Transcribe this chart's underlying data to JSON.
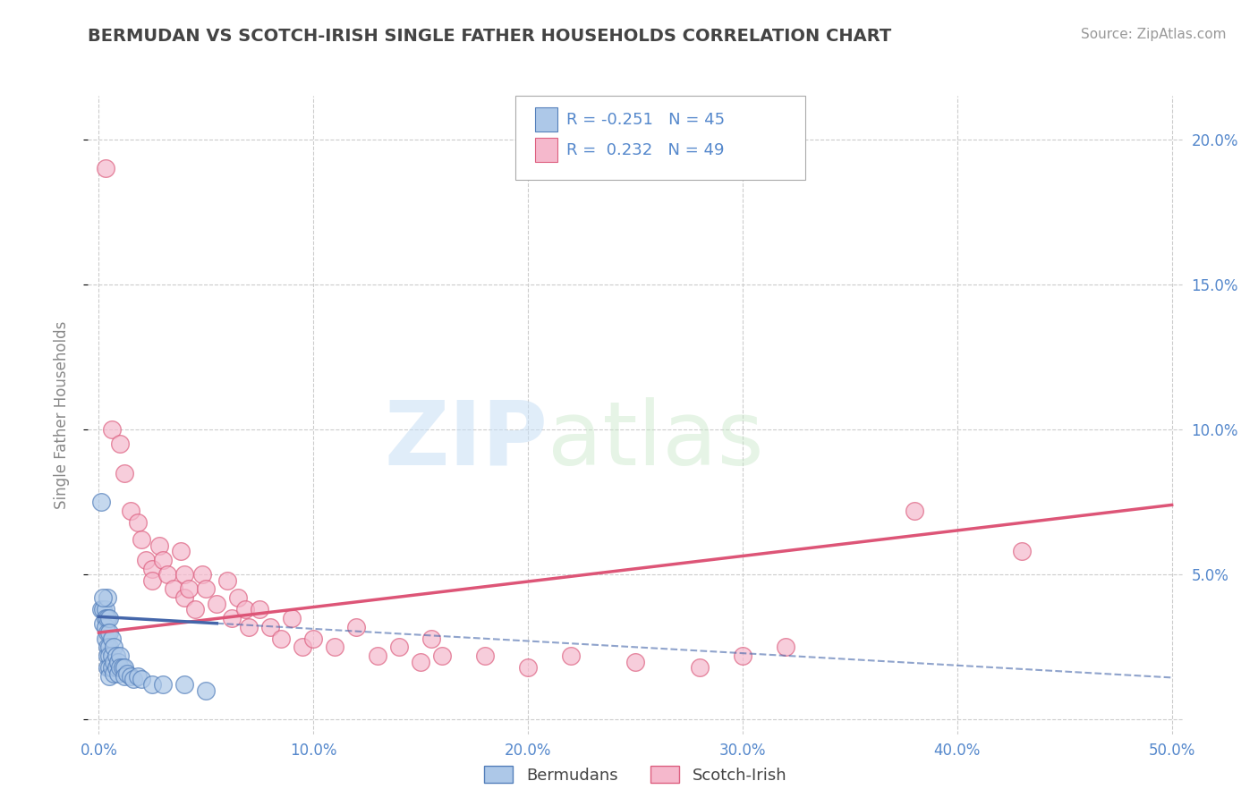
{
  "title": "BERMUDAN VS SCOTCH-IRISH SINGLE FATHER HOUSEHOLDS CORRELATION CHART",
  "source": "Source: ZipAtlas.com",
  "ylabel": "Single Father Households",
  "xlim": [
    -0.005,
    0.505
  ],
  "ylim": [
    -0.005,
    0.215
  ],
  "xticks": [
    0.0,
    0.1,
    0.2,
    0.3,
    0.4,
    0.5
  ],
  "yticks": [
    0.0,
    0.05,
    0.1,
    0.15,
    0.2
  ],
  "xticklabels": [
    "0.0%",
    "10.0%",
    "20.0%",
    "30.0%",
    "40.0%",
    "50.0%"
  ],
  "yticklabels_right": [
    "",
    "5.0%",
    "10.0%",
    "15.0%",
    "20.0%"
  ],
  "legend_labels": [
    "Bermudans",
    "Scotch-Irish"
  ],
  "bermudan_color": "#adc8e8",
  "scotch_irish_color": "#f5b8cc",
  "bermudan_edge_color": "#5580bb",
  "scotch_irish_edge_color": "#dd6080",
  "bermudan_line_color": "#4466aa",
  "scotch_irish_line_color": "#dd5577",
  "R_bermudan": -0.251,
  "N_bermudan": 45,
  "R_scotch_irish": 0.232,
  "N_scotch_irish": 49,
  "watermark_text": "ZIP",
  "watermark_text2": "atlas",
  "grid_color": "#cccccc",
  "background_color": "#ffffff",
  "title_color": "#444444",
  "axis_label_color": "#888888",
  "tick_color": "#5588cc",
  "bermudan_scatter": [
    [
      0.001,
      0.038
    ],
    [
      0.002,
      0.038
    ],
    [
      0.002,
      0.033
    ],
    [
      0.003,
      0.038
    ],
    [
      0.003,
      0.035
    ],
    [
      0.003,
      0.032
    ],
    [
      0.003,
      0.028
    ],
    [
      0.004,
      0.042
    ],
    [
      0.004,
      0.035
    ],
    [
      0.004,
      0.03
    ],
    [
      0.004,
      0.025
    ],
    [
      0.004,
      0.022
    ],
    [
      0.004,
      0.018
    ],
    [
      0.005,
      0.035
    ],
    [
      0.005,
      0.03
    ],
    [
      0.005,
      0.025
    ],
    [
      0.005,
      0.022
    ],
    [
      0.005,
      0.018
    ],
    [
      0.005,
      0.015
    ],
    [
      0.006,
      0.028
    ],
    [
      0.006,
      0.022
    ],
    [
      0.006,
      0.018
    ],
    [
      0.007,
      0.025
    ],
    [
      0.007,
      0.02
    ],
    [
      0.007,
      0.016
    ],
    [
      0.008,
      0.022
    ],
    [
      0.008,
      0.018
    ],
    [
      0.009,
      0.02
    ],
    [
      0.009,
      0.016
    ],
    [
      0.01,
      0.022
    ],
    [
      0.01,
      0.018
    ],
    [
      0.011,
      0.018
    ],
    [
      0.012,
      0.018
    ],
    [
      0.012,
      0.015
    ],
    [
      0.013,
      0.016
    ],
    [
      0.015,
      0.015
    ],
    [
      0.016,
      0.014
    ],
    [
      0.018,
      0.015
    ],
    [
      0.02,
      0.014
    ],
    [
      0.025,
      0.012
    ],
    [
      0.03,
      0.012
    ],
    [
      0.04,
      0.012
    ],
    [
      0.05,
      0.01
    ],
    [
      0.001,
      0.075
    ],
    [
      0.002,
      0.042
    ]
  ],
  "scotch_irish_scatter": [
    [
      0.003,
      0.19
    ],
    [
      0.006,
      0.1
    ],
    [
      0.01,
      0.095
    ],
    [
      0.012,
      0.085
    ],
    [
      0.015,
      0.072
    ],
    [
      0.018,
      0.068
    ],
    [
      0.02,
      0.062
    ],
    [
      0.022,
      0.055
    ],
    [
      0.025,
      0.052
    ],
    [
      0.025,
      0.048
    ],
    [
      0.028,
      0.06
    ],
    [
      0.03,
      0.055
    ],
    [
      0.032,
      0.05
    ],
    [
      0.035,
      0.045
    ],
    [
      0.038,
      0.058
    ],
    [
      0.04,
      0.05
    ],
    [
      0.04,
      0.042
    ],
    [
      0.042,
      0.045
    ],
    [
      0.045,
      0.038
    ],
    [
      0.048,
      0.05
    ],
    [
      0.05,
      0.045
    ],
    [
      0.055,
      0.04
    ],
    [
      0.06,
      0.048
    ],
    [
      0.062,
      0.035
    ],
    [
      0.065,
      0.042
    ],
    [
      0.068,
      0.038
    ],
    [
      0.07,
      0.032
    ],
    [
      0.075,
      0.038
    ],
    [
      0.08,
      0.032
    ],
    [
      0.085,
      0.028
    ],
    [
      0.09,
      0.035
    ],
    [
      0.095,
      0.025
    ],
    [
      0.1,
      0.028
    ],
    [
      0.11,
      0.025
    ],
    [
      0.12,
      0.032
    ],
    [
      0.13,
      0.022
    ],
    [
      0.14,
      0.025
    ],
    [
      0.15,
      0.02
    ],
    [
      0.155,
      0.028
    ],
    [
      0.16,
      0.022
    ],
    [
      0.18,
      0.022
    ],
    [
      0.2,
      0.018
    ],
    [
      0.22,
      0.022
    ],
    [
      0.25,
      0.02
    ],
    [
      0.28,
      0.018
    ],
    [
      0.3,
      0.022
    ],
    [
      0.32,
      0.025
    ],
    [
      0.38,
      0.072
    ],
    [
      0.43,
      0.058
    ]
  ],
  "bermudan_trend": [
    0.0,
    0.5,
    0.0355,
    0.0145
  ],
  "scotch_irish_trend": [
    0.0,
    0.5,
    0.03,
    0.074
  ],
  "bermudan_trend_dashed_start": 0.055
}
